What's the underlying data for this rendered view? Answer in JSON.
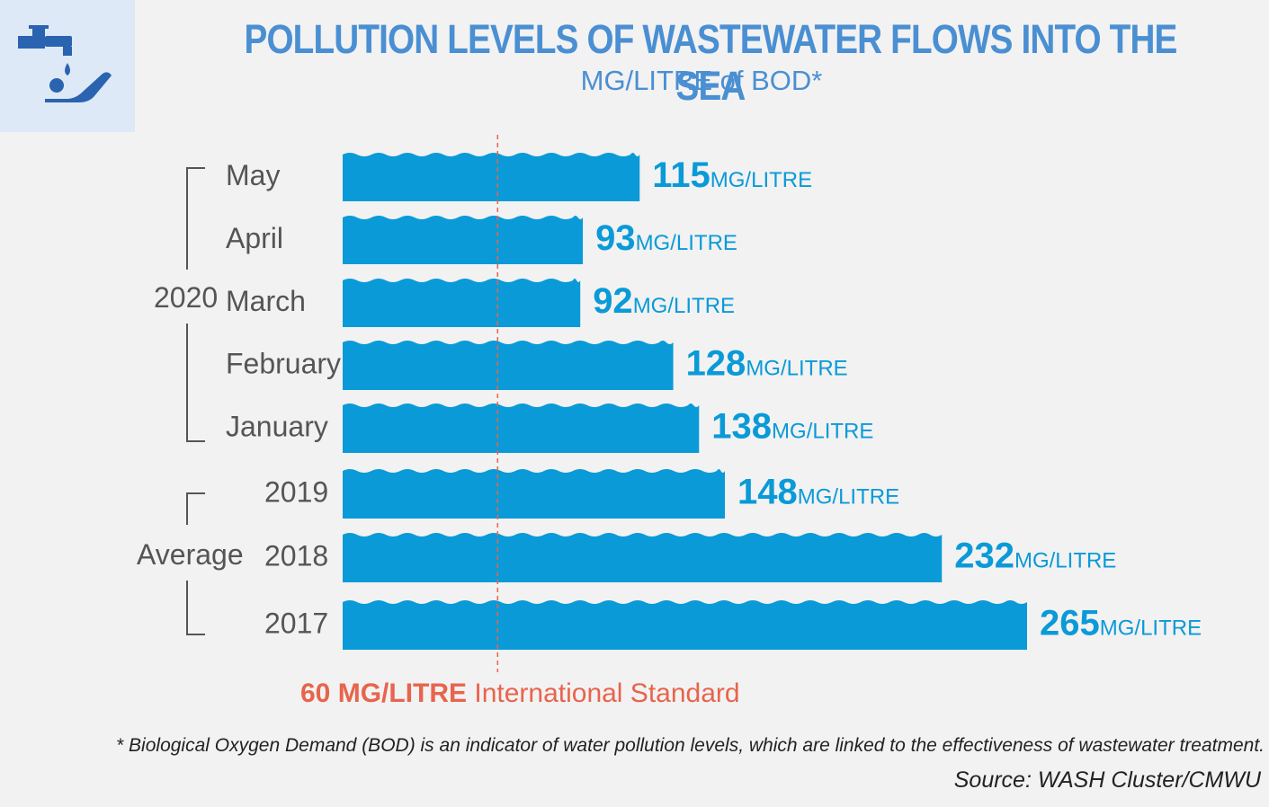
{
  "header": {
    "title": "POLLUTION LEVELS OF WASTEWATER FLOWS INTO THE SEA",
    "subtitle": "MG/LITRE of BOD*",
    "icon": "tap-hand-icon"
  },
  "chart_data": {
    "type": "bar",
    "orientation": "horizontal",
    "categories": [
      "May",
      "April",
      "March",
      "February",
      "January",
      "2019",
      "2018",
      "2017"
    ],
    "values": [
      115,
      93,
      92,
      128,
      138,
      148,
      232,
      265
    ],
    "unit_label": "MG/LITRE",
    "groups": [
      {
        "label": "2020",
        "categories": [
          "May",
          "April",
          "March",
          "February",
          "January"
        ]
      },
      {
        "label": "Average",
        "categories": [
          "2019",
          "2018",
          "2017"
        ]
      }
    ],
    "reference_line": {
      "value": 60,
      "value_label": "60",
      "unit_label": "MG/LITRE",
      "label": "International Standard"
    },
    "xlim": [
      0,
      265
    ],
    "grid": false,
    "legend": "none"
  },
  "footer": {
    "footnote": "* Biological Oxygen Demand (BOD) is an indicator of water pollution levels, which are linked to the effectiveness of wastewater treatment.",
    "source": "Source: WASH Cluster/CMWU"
  },
  "colors": {
    "bar": "#0a9ad8",
    "title": "#4a8fd2",
    "reference": "#e8644c",
    "label": "#555555",
    "icon_bg": "#dde9f6",
    "icon": "#2a63b0"
  }
}
